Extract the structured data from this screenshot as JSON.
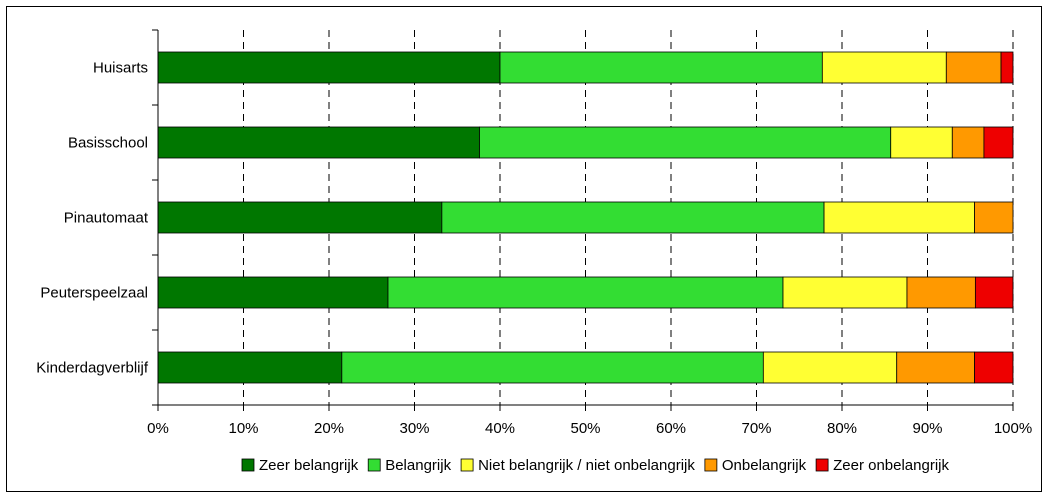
{
  "chart_data": {
    "type": "bar",
    "orientation": "horizontal",
    "stacked": true,
    "percent_stacked": true,
    "categories": [
      "Huisarts",
      "Basisschool",
      "Pinautomaat",
      "Peuterspeelzaal",
      "Kinderdagverblijf"
    ],
    "series": [
      {
        "name": "Zeer belangrijk",
        "color": "#007700",
        "values": [
          40.0,
          37.6,
          33.2,
          26.9,
          21.5
        ]
      },
      {
        "name": "Belangrijk",
        "color": "#33dd33",
        "values": [
          37.7,
          48.1,
          44.7,
          46.2,
          49.3
        ]
      },
      {
        "name": "Niet belangrijk / niet onbelangrijk",
        "color": "#ffff33",
        "values": [
          14.5,
          7.2,
          17.6,
          14.5,
          15.6
        ]
      },
      {
        "name": "Onbelangrijk",
        "color": "#ff9900",
        "values": [
          6.4,
          3.7,
          4.5,
          8.0,
          9.1
        ]
      },
      {
        "name": "Zeer onbelangrijk",
        "color": "#ee0000",
        "values": [
          1.4,
          3.4,
          0.0,
          4.4,
          4.5
        ]
      }
    ],
    "xlim": [
      0,
      100
    ],
    "x_ticks": [
      "0%",
      "10%",
      "20%",
      "30%",
      "40%",
      "50%",
      "60%",
      "70%",
      "80%",
      "90%",
      "100%"
    ],
    "title": "",
    "xlabel": "",
    "ylabel": "",
    "grid": "vertical dashed",
    "legend_position": "bottom"
  }
}
